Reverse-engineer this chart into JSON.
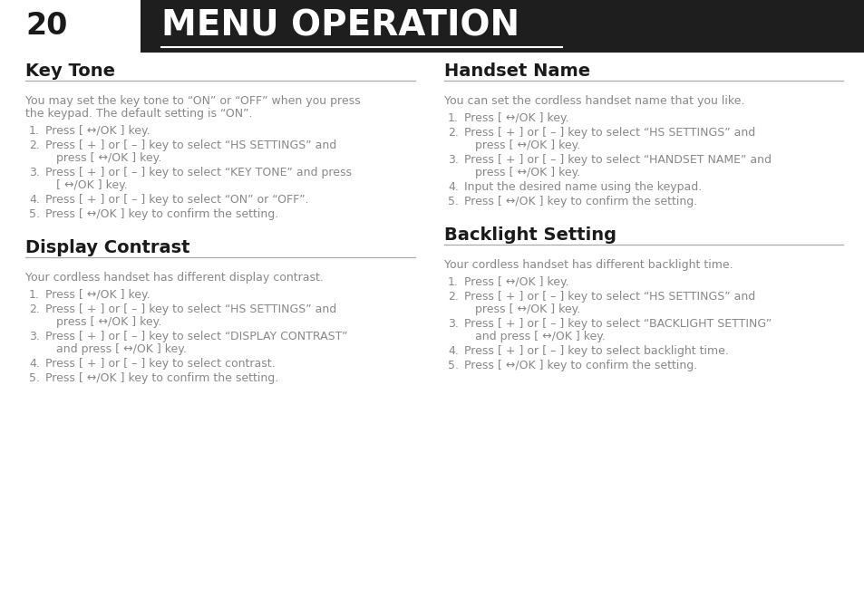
{
  "page_number": "20",
  "page_title": "MENU OPERATION",
  "header_bg": "#1e1e1e",
  "header_text_color": "#ffffff",
  "body_bg": "#ffffff",
  "section_title_color": "#1a1a1a",
  "section_line_color": "#aaaaaa",
  "body_text_color": "#888888",
  "left_sections": [
    {
      "title": "Key Tone",
      "intro": "You may set the key tone to “ON” or “OFF” when you press\nthe keypad. The default setting is “ON”.",
      "steps": [
        "Press [ ↔/OK ] key.",
        "Press [ + ] or [ – ] key to select “HS SETTINGS” and\npress [ ↔/OK ] key.",
        "Press [ + ] or [ – ] key to select “KEY TONE” and press\n[ ↔/OK ] key.",
        "Press [ + ] or [ – ] key to select “ON” or “OFF”.",
        "Press [ ↔/OK ] key to confirm the setting."
      ]
    },
    {
      "title": "Display Contrast",
      "intro": "Your cordless handset has different display contrast.",
      "steps": [
        "Press [ ↔/OK ] key.",
        "Press [ + ] or [ – ] key to select “HS SETTINGS” and\npress [ ↔/OK ] key.",
        "Press [ + ] or [ – ] key to select “DISPLAY CONTRAST”\nand press [ ↔/OK ] key.",
        "Press [ + ] or [ – ] key to select contrast.",
        "Press [ ↔/OK ] key to confirm the setting."
      ]
    }
  ],
  "right_sections": [
    {
      "title": "Handset Name",
      "intro": "You can set the cordless handset name that you like.",
      "steps": [
        "Press [ ↔/OK ] key.",
        "Press [ + ] or [ – ] key to select “HS SETTINGS” and\npress [ ↔/OK ] key.",
        "Press [ + ] or [ – ] key to select “HANDSET NAME” and\npress [ ↔/OK ] key.",
        "Input the desired name using the keypad.",
        "Press [ ↔/OK ] key to confirm the setting."
      ]
    },
    {
      "title": "Backlight Setting",
      "intro": "Your cordless handset has different backlight time.",
      "steps": [
        "Press [ ↔/OK ] key.",
        "Press [ + ] or [ – ] key to select “HS SETTINGS” and\npress [ ↔/OK ] key.",
        "Press [ + ] or [ – ] key to select “BACKLIGHT SETTING”\nand press [ ↔/OK ] key.",
        "Press [ + ] or [ – ] key to select backlight time.",
        "Press [ ↔/OK ] key to confirm the setting."
      ]
    }
  ],
  "ok_symbol": "↔/OK"
}
